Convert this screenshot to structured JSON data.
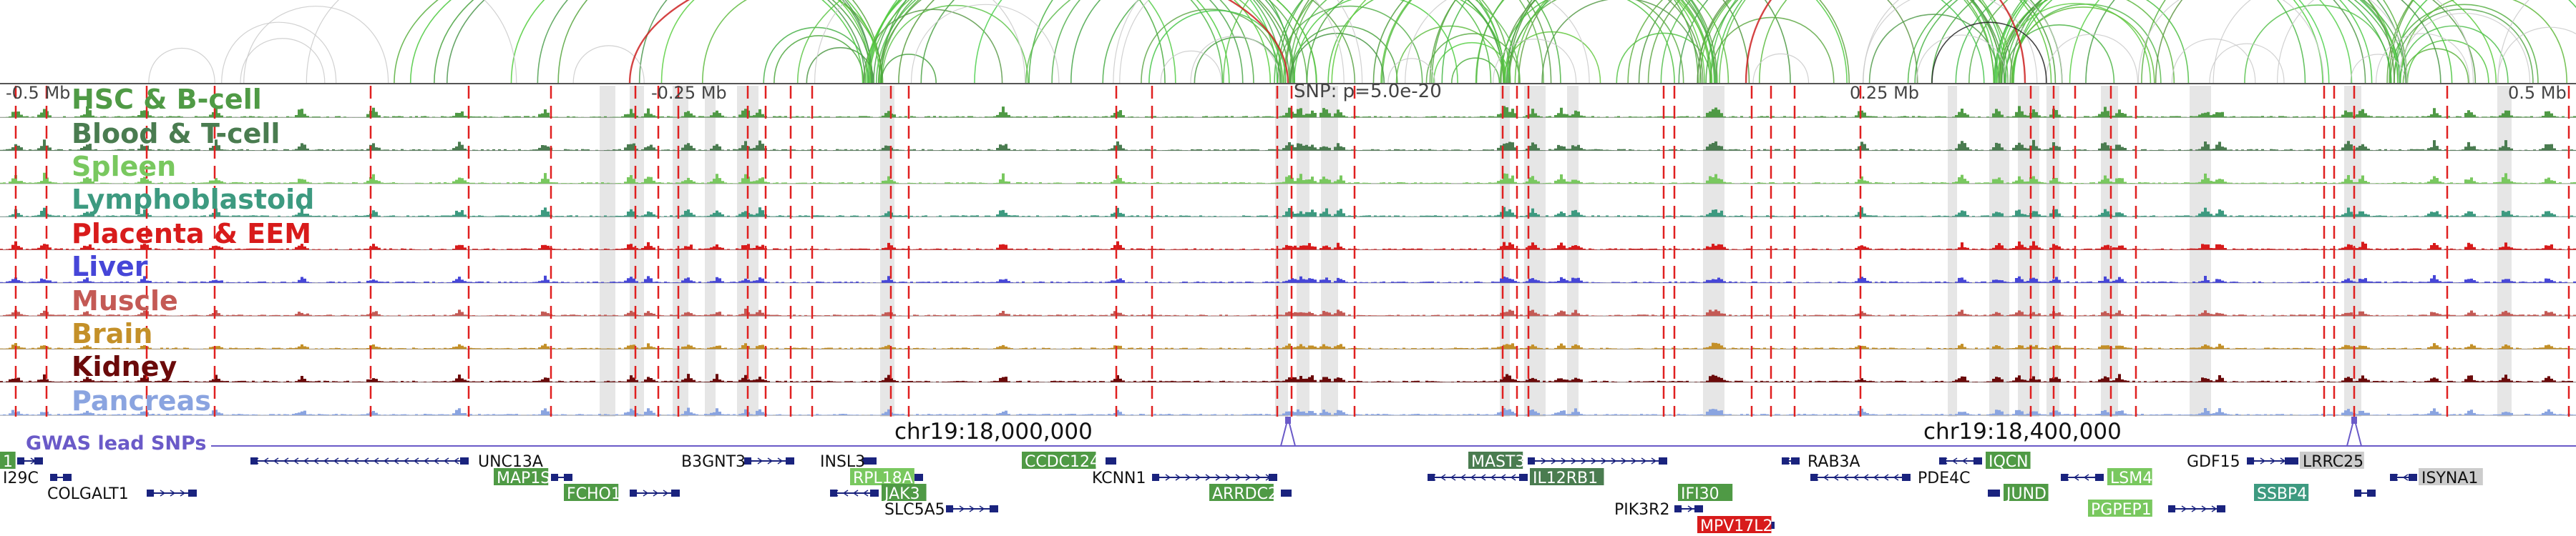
{
  "axis": {
    "ticks": [
      {
        "label": "-0.5 Mb",
        "pos": -0.5
      },
      {
        "label": "-0.25 Mb",
        "pos": -0.25
      },
      {
        "label": "0.25 Mb",
        "pos": 0.25
      },
      {
        "label": "0.5 Mb",
        "pos": 0.5
      }
    ],
    "snp_label": "SNP: p=5.0e-20"
  },
  "tracks": [
    {
      "name": "HSC & B-cell",
      "color": "#4f9a45",
      "level": 0.95
    },
    {
      "name": "Blood & T-cell",
      "color": "#4a7c50",
      "level": 0.9
    },
    {
      "name": "Spleen",
      "color": "#79c85f",
      "level": 0.85
    },
    {
      "name": "Lymphoblastoid",
      "color": "#3d9a80",
      "level": 0.8
    },
    {
      "name": "Placenta & EEM",
      "color": "#d81b1b",
      "level": 0.7
    },
    {
      "name": "Liver",
      "color": "#4646d8",
      "level": 0.6
    },
    {
      "name": "Muscle",
      "color": "#c45a55",
      "level": 0.55
    },
    {
      "name": "Brain",
      "color": "#c49028",
      "level": 0.5
    },
    {
      "name": "Kidney",
      "color": "#6b0a0a",
      "level": 0.65
    },
    {
      "name": "Pancreas",
      "color": "#8aa4e0",
      "level": 0.6
    }
  ],
  "gwas": {
    "label": "GWAS lead SNPs",
    "color": "#6a5ac8",
    "coords": [
      {
        "label": "chr19:18,000,000"
      },
      {
        "label": "chr19:18,400,000"
      }
    ]
  },
  "genes": [
    {
      "name": "1",
      "row": 0,
      "highlight": "#4f9a45",
      "dir": ">"
    },
    {
      "name": "I29C",
      "row": 1,
      "highlight": null,
      "dir": ">"
    },
    {
      "name": "COLGALT1",
      "row": 2,
      "highlight": null,
      "dir": ">"
    },
    {
      "name": "UNC13A",
      "row": 0,
      "highlight": null,
      "dir": "<"
    },
    {
      "name": "MAP1S",
      "row": 1,
      "highlight": "#4f9a45",
      "dir": ">"
    },
    {
      "name": "FCHO1",
      "row": 2,
      "highlight": "#4f9a45",
      "dir": ">"
    },
    {
      "name": "B3GNT3",
      "row": 0,
      "highlight": null,
      "dir": ">"
    },
    {
      "name": "INSL3",
      "row": 0,
      "highlight": null,
      "dir": "<"
    },
    {
      "name": "RPL18A",
      "row": 1,
      "highlight": "#79c85f",
      "dir": ">"
    },
    {
      "name": "JAK3",
      "row": 2,
      "highlight": "#4f9a45",
      "dir": "<"
    },
    {
      "name": "SLC5A5",
      "row": 3,
      "highlight": null,
      "dir": ">"
    },
    {
      "name": "CCDC124",
      "row": 0,
      "highlight": "#4f9a45",
      "dir": ">"
    },
    {
      "name": "KCNN1",
      "row": 1,
      "highlight": null,
      "dir": ">"
    },
    {
      "name": "ARRDC2",
      "row": 2,
      "highlight": "#4f9a45",
      "dir": ">"
    },
    {
      "name": "MAST3",
      "row": 0,
      "highlight": "#4a7c50",
      "dir": ">"
    },
    {
      "name": "IL12RB1",
      "row": 1,
      "highlight": "#4a7c50",
      "dir": "<"
    },
    {
      "name": "IFI30",
      "row": 2,
      "highlight": "#4f9a45",
      "dir": ">"
    },
    {
      "name": "PIK3R2",
      "row": 3,
      "highlight": null,
      "dir": ">"
    },
    {
      "name": "MPV17L2",
      "row": 4,
      "highlight": "#d81b1b",
      "dir": "<"
    },
    {
      "name": "RAB3A",
      "row": 0,
      "highlight": null,
      "dir": "<"
    },
    {
      "name": "PDE4C",
      "row": 1,
      "highlight": null,
      "dir": "<"
    },
    {
      "name": "IQCN",
      "row": 0,
      "highlight": "#4f9a45",
      "dir": "<"
    },
    {
      "name": "JUND",
      "row": 2,
      "highlight": "#4f9a45",
      "dir": "<"
    },
    {
      "name": "LSM4",
      "row": 1,
      "highlight": "#79c85f",
      "dir": "<"
    },
    {
      "name": "PGPEP1",
      "row": 3,
      "highlight": "#79c85f",
      "dir": ">"
    },
    {
      "name": "GDF15",
      "row": 0,
      "highlight": null,
      "dir": ">"
    },
    {
      "name": "LRRC25",
      "row": 0,
      "highlight": "#cccccc",
      "dir": "<"
    },
    {
      "name": "SSBP4",
      "row": 2,
      "highlight": "#3d9a80",
      "dir": ">"
    },
    {
      "name": "ISYNA1",
      "row": 1,
      "highlight": "#cccccc",
      "dir": "<"
    }
  ]
}
